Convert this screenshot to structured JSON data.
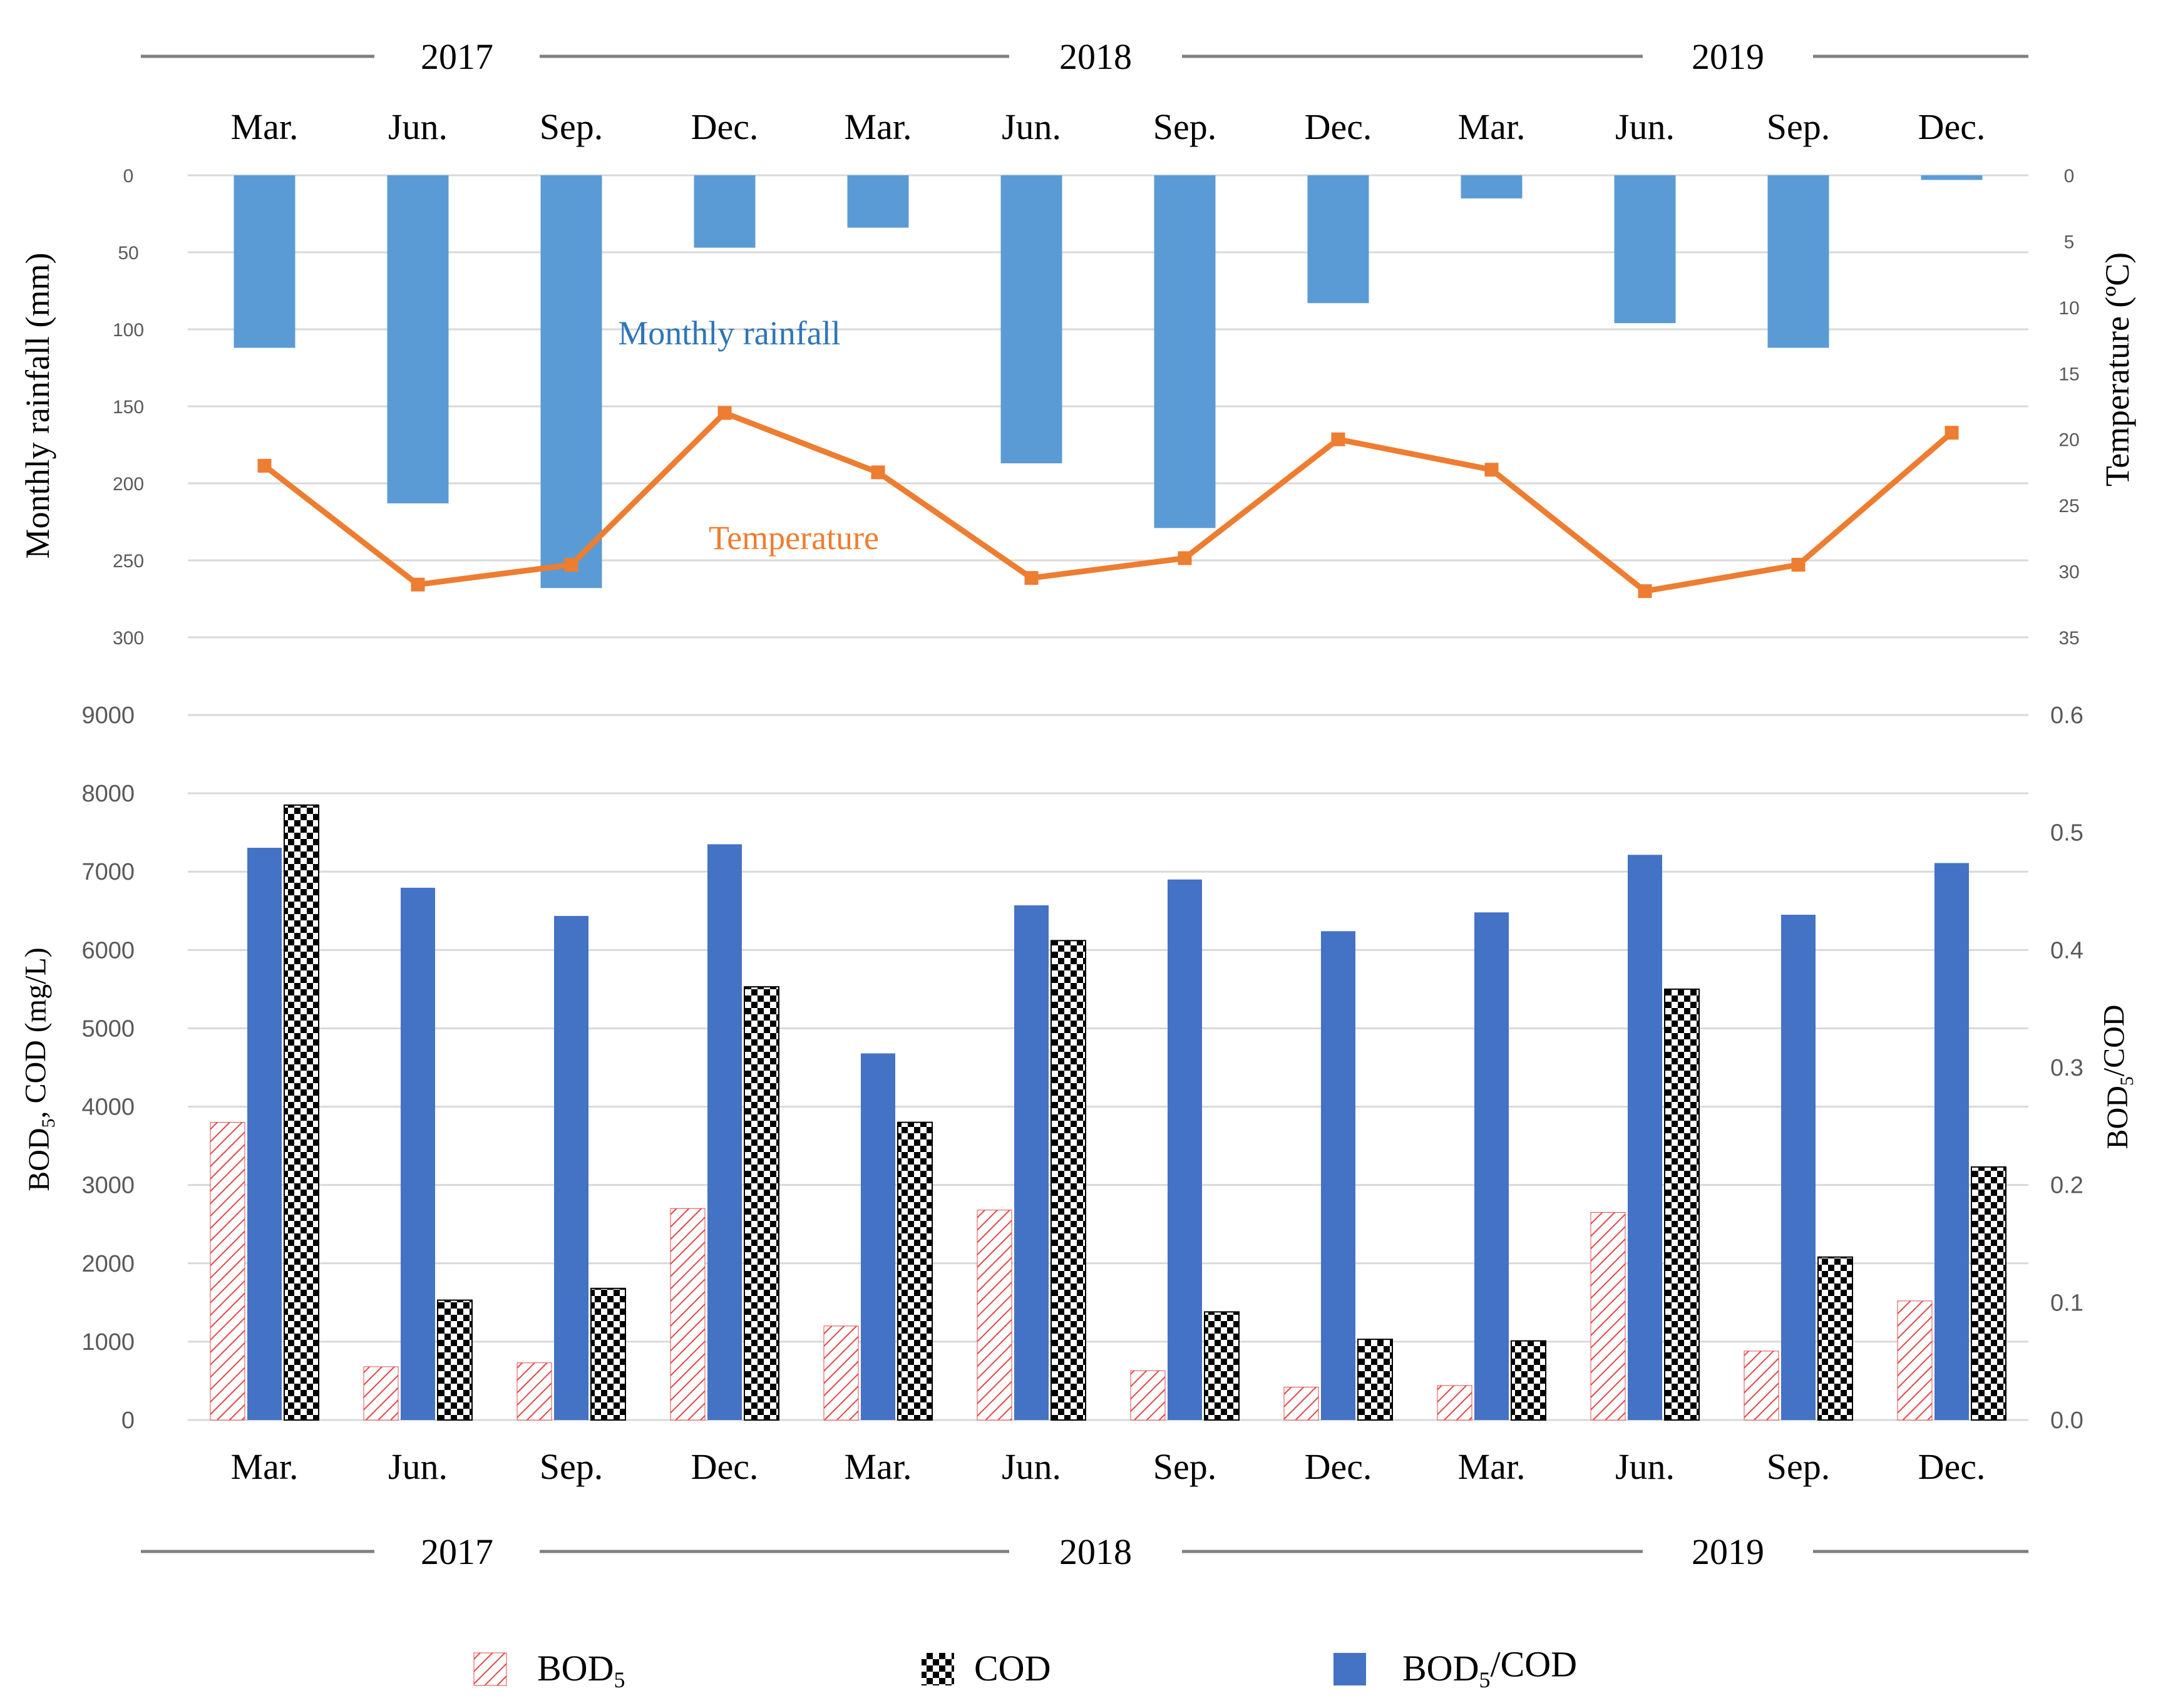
{
  "colors": {
    "rainfall": "#5b9bd5",
    "temperature": "#ed7d31",
    "bod5": "#e04848",
    "cod": "#000000",
    "ratio": "#4472c4",
    "grid": "#d9d9d9",
    "timeline": "#808080"
  },
  "chart_data": [
    {
      "type": "bar",
      "title": "",
      "year_groups": [
        "2017",
        "2018",
        "2019"
      ],
      "categories": [
        "Mar.",
        "Jun.",
        "Sep.",
        "Dec.",
        "Mar.",
        "Jun.",
        "Sep.",
        "Dec.",
        "Mar.",
        "Jun.",
        "Sep.",
        "Dec."
      ],
      "ylabel_left": "Monthly rainfall (mm)",
      "ylabel_right": "Temperature (ºC)",
      "ylim_left": [
        0,
        300
      ],
      "ylim_right": [
        0,
        35
      ],
      "y_ticks_left": [
        "0",
        "50",
        "100",
        "150",
        "200",
        "250",
        "300"
      ],
      "y_ticks_right": [
        "0",
        "5",
        "10",
        "15",
        "20",
        "25",
        "30",
        "35"
      ],
      "axis_inverted": true,
      "grid": true,
      "series": [
        {
          "name": "Monthly rainfall",
          "type": "bar",
          "axis": "left",
          "values": [
            112,
            213,
            268,
            47,
            34,
            187,
            229,
            83,
            15,
            96,
            112,
            3
          ]
        },
        {
          "name": "Temperature",
          "type": "line",
          "axis": "right",
          "values": [
            22,
            31,
            29.5,
            18,
            22.5,
            30.5,
            29,
            20,
            22.3,
            31.5,
            29.5,
            19.5
          ]
        }
      ],
      "annotations": [
        "Monthly rainfall",
        "Temperature"
      ]
    },
    {
      "type": "bar",
      "title": "",
      "year_groups": [
        "2017",
        "2018",
        "2019"
      ],
      "categories": [
        "Mar.",
        "Jun.",
        "Sep.",
        "Dec.",
        "Mar.",
        "Jun.",
        "Sep.",
        "Dec.",
        "Mar.",
        "Jun.",
        "Sep.",
        "Dec."
      ],
      "ylabel_left": "BOD5, COD (mg/L)",
      "ylabel_right": "BOD5/COD",
      "ylim_left": [
        0,
        9000
      ],
      "ylim_right": [
        0,
        0.6
      ],
      "y_ticks_left": [
        "0",
        "1000",
        "2000",
        "3000",
        "4000",
        "5000",
        "6000",
        "7000",
        "8000",
        "9000"
      ],
      "y_ticks_right": [
        "0.0",
        "0.1",
        "0.2",
        "0.3",
        "0.4",
        "0.5",
        "0.6"
      ],
      "grid": true,
      "legend": "bottom",
      "series": [
        {
          "name": "BOD5",
          "axis": "left",
          "values": [
            3800,
            680,
            730,
            2700,
            1200,
            2680,
            630,
            420,
            440,
            2650,
            880,
            1520
          ]
        },
        {
          "name": "COD",
          "axis": "left",
          "values": [
            7850,
            1530,
            1680,
            5530,
            3800,
            6120,
            1380,
            1030,
            1010,
            5500,
            2080,
            3230
          ]
        },
        {
          "name": "BOD5/COD",
          "axis": "right",
          "values": [
            0.487,
            0.453,
            0.429,
            0.49,
            0.312,
            0.438,
            0.46,
            0.416,
            0.432,
            0.481,
            0.43,
            0.474
          ]
        }
      ]
    }
  ],
  "legend": {
    "bod5": {
      "base": "BOD",
      "sub": "5"
    },
    "cod": {
      "base": "COD"
    },
    "ratio": {
      "base": "BOD",
      "sub": "5",
      "rest": "/COD"
    }
  },
  "axis_titles": {
    "bottom_left": {
      "base": "BOD",
      "sub": "5",
      "rest": ", COD (mg/L)"
    },
    "bottom_right": {
      "base": "BOD",
      "sub": "5",
      "rest": "/COD"
    }
  }
}
